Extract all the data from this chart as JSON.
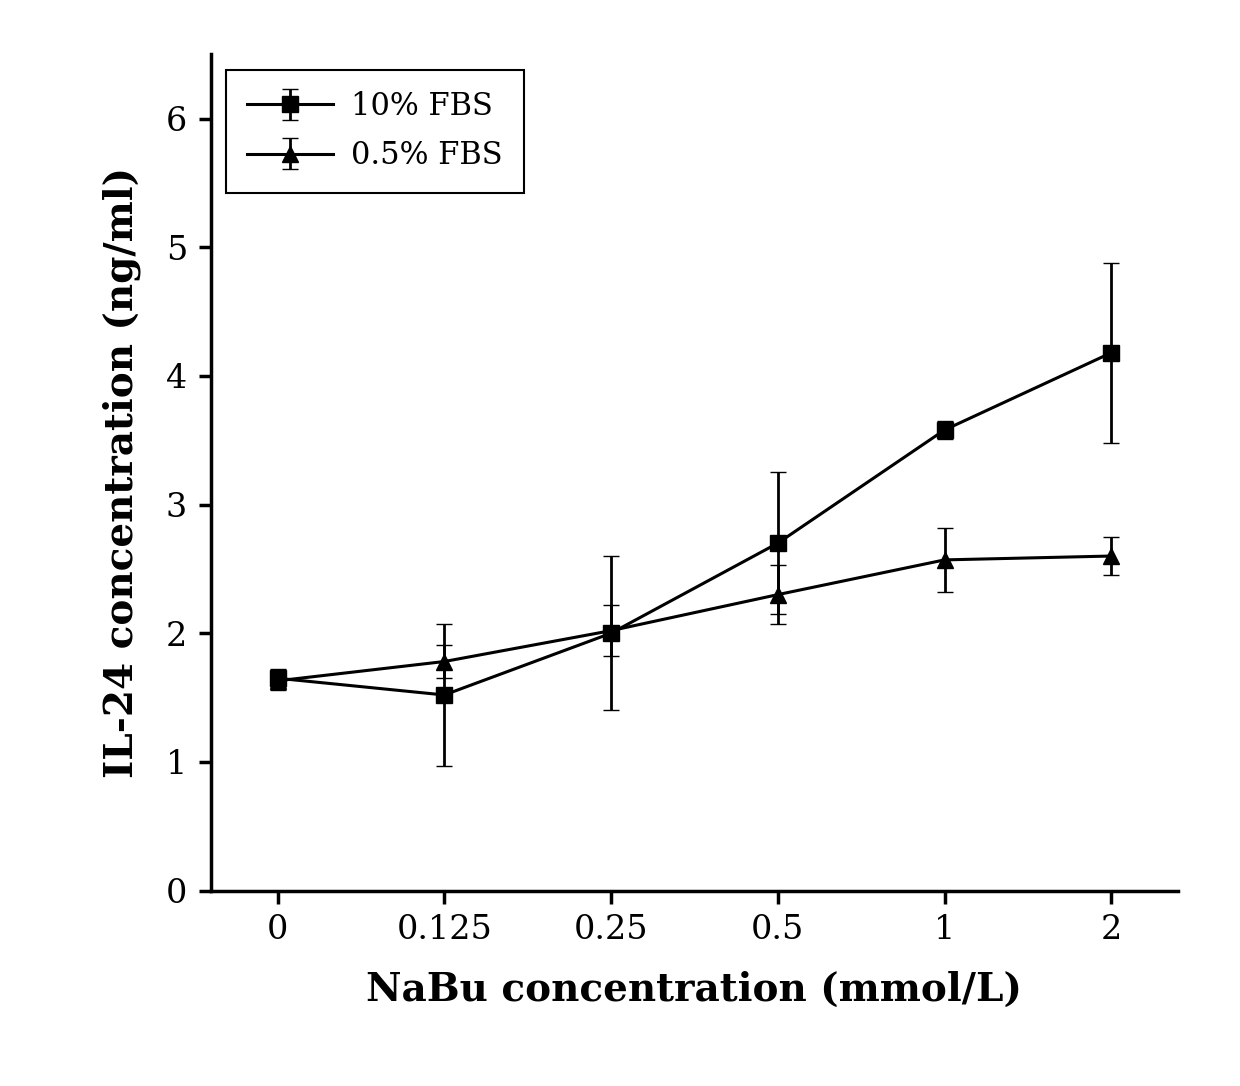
{
  "x_positions": [
    0,
    1,
    2,
    3,
    4,
    5
  ],
  "series_10pct": {
    "y": [
      1.65,
      1.52,
      2.0,
      2.7,
      3.58,
      4.18
    ],
    "yerr": [
      0.07,
      0.55,
      0.6,
      0.55,
      0.07,
      0.7
    ],
    "label": "10% FBS",
    "marker": "s"
  },
  "series_05pct": {
    "y": [
      1.63,
      1.78,
      2.02,
      2.3,
      2.57,
      2.6
    ],
    "yerr": [
      0.07,
      0.13,
      0.2,
      0.23,
      0.25,
      0.15
    ],
    "label": "0.5% FBS",
    "marker": "^"
  },
  "xlabel": "NaBu concentration (mmol/L)",
  "ylabel": "IL-24 concentration (ng/ml)",
  "xtick_labels": [
    "0",
    "0.125",
    "0.25",
    "0.5",
    "1",
    "2"
  ],
  "ylim": [
    0,
    6.5
  ],
  "yticks": [
    0,
    1,
    2,
    3,
    4,
    5,
    6
  ],
  "background_color": "#ffffff",
  "linewidth": 2.2,
  "markersize": 11,
  "capsize": 6,
  "elinewidth": 2.0,
  "tick_fontsize": 24,
  "label_fontsize": 28,
  "legend_fontsize": 22
}
